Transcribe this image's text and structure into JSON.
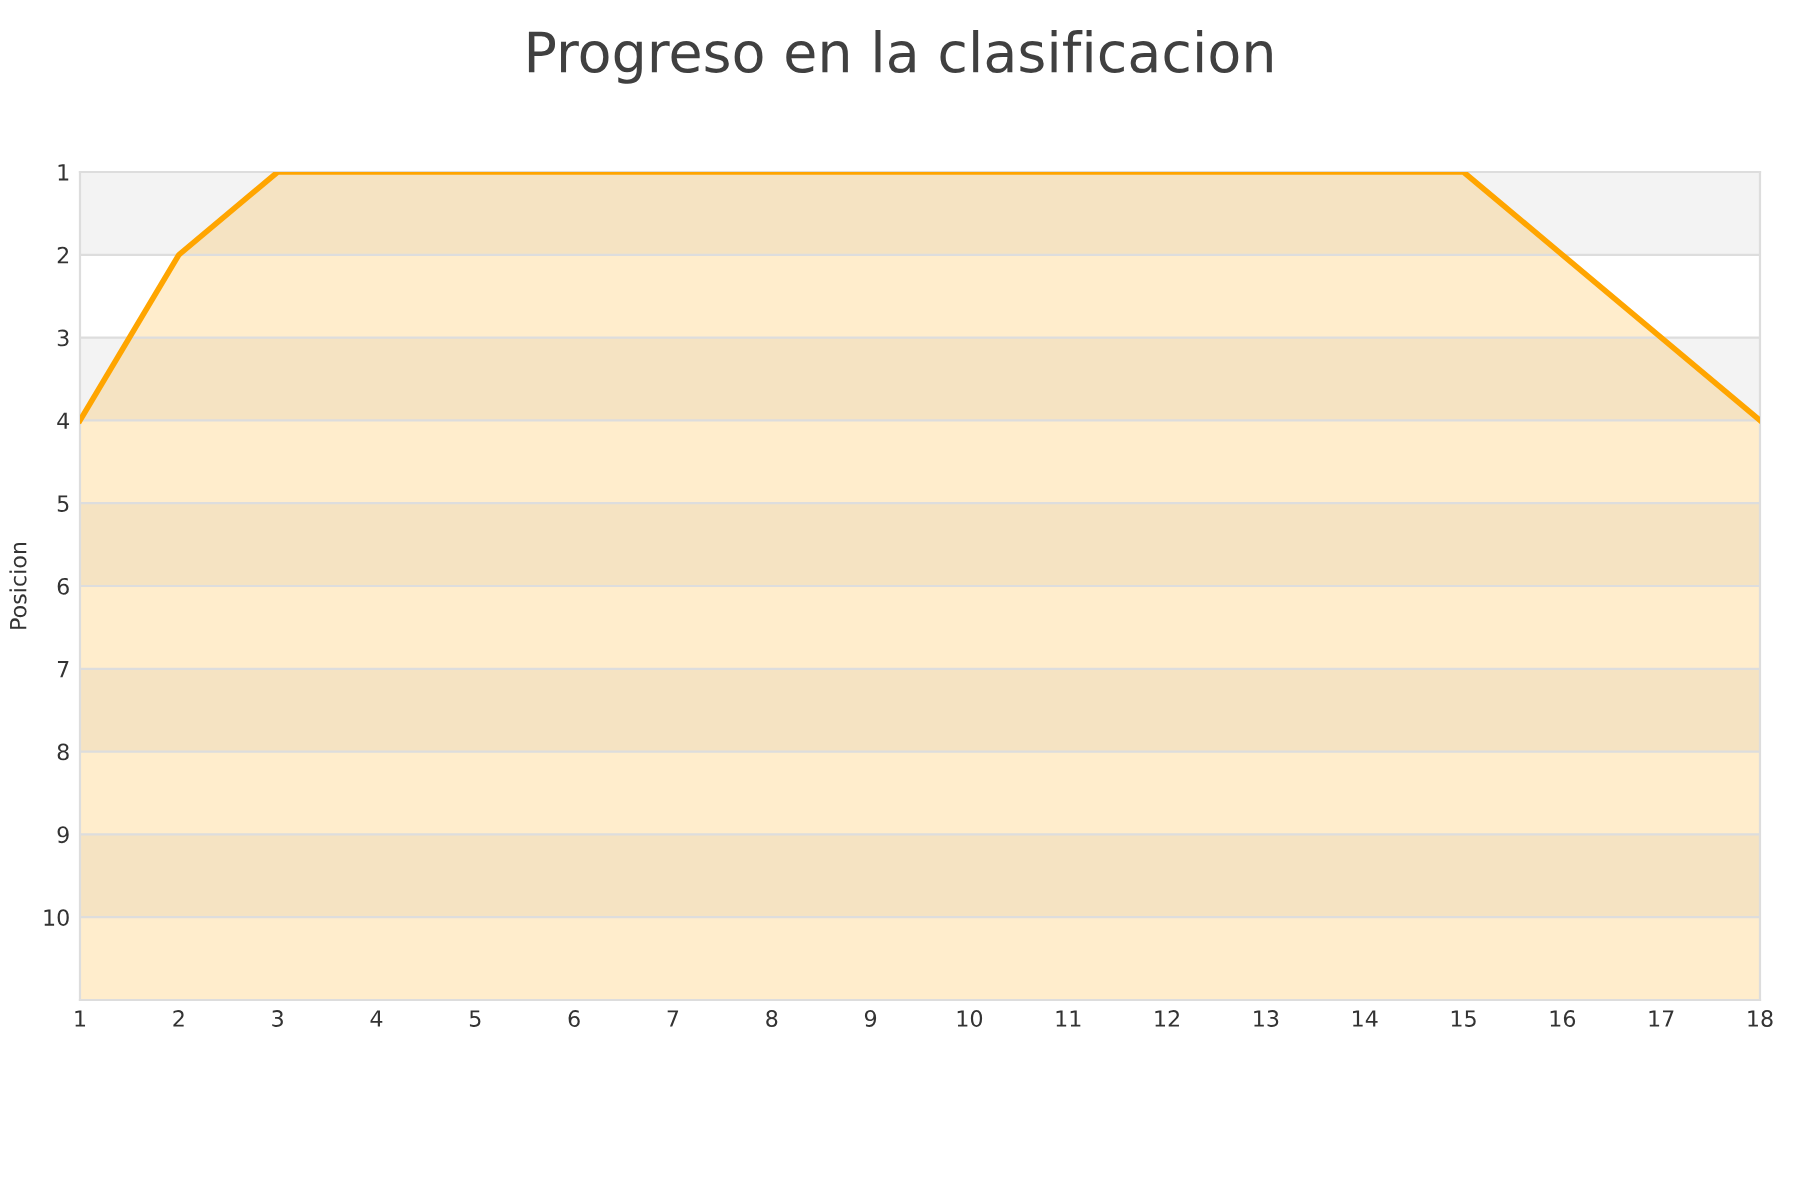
{
  "chart_data": {
    "type": "area",
    "title": "Progreso en la clasificacion",
    "ylabel": "Posicion",
    "x": [
      1,
      2,
      3,
      4,
      5,
      6,
      7,
      8,
      9,
      10,
      11,
      12,
      13,
      14,
      15,
      16,
      17,
      18
    ],
    "series": [
      {
        "color": "#ffa500",
        "values": [
          4,
          2,
          1,
          1,
          1,
          1,
          1,
          1,
          1,
          1,
          1,
          1,
          1,
          1,
          1,
          2,
          3,
          4
        ]
      }
    ],
    "xlim": [
      1,
      18
    ],
    "xticks": [
      1,
      2,
      3,
      4,
      5,
      6,
      7,
      8,
      9,
      10,
      11,
      12,
      13,
      14,
      15,
      16,
      17,
      18
    ],
    "ylim": [
      11,
      1
    ],
    "yticks": [
      1,
      2,
      3,
      4,
      5,
      6,
      7,
      8,
      9,
      10
    ],
    "grid": "y"
  }
}
